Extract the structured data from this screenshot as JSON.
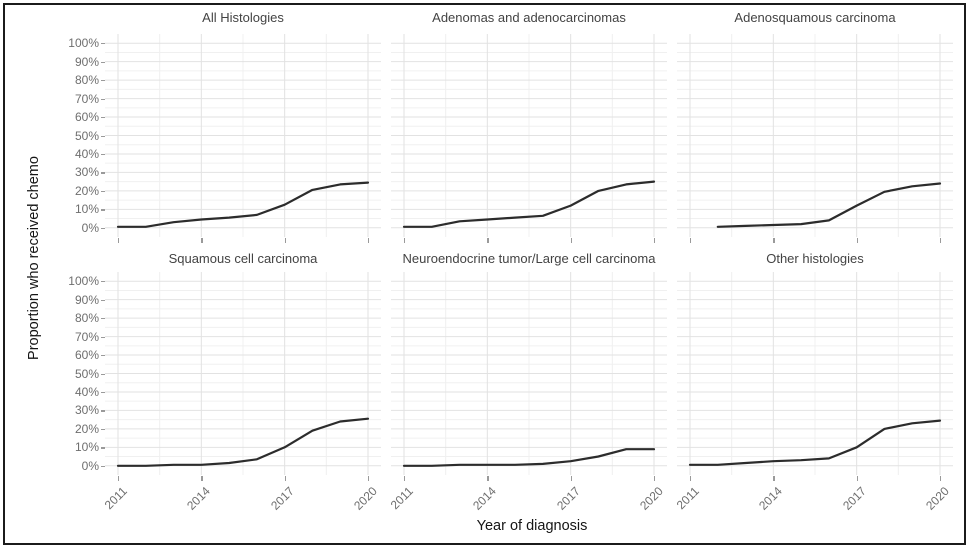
{
  "figure": {
    "background": "#ffffff",
    "border_color": "#1b1b1b"
  },
  "chart_data": {
    "type": "line",
    "layout": {
      "rows": 2,
      "cols": 3,
      "kind": "facet_grid"
    },
    "xlabel": "Year of diagnosis",
    "ylabel": "Proportion who received chemo",
    "x": [
      2011,
      2012,
      2013,
      2014,
      2015,
      2016,
      2017,
      2018,
      2019,
      2020
    ],
    "x_ticks": [
      2011,
      2014,
      2017,
      2020
    ],
    "x_tick_labels": [
      "2011",
      "2014",
      "2017",
      "2020"
    ],
    "y_ticks": [
      0,
      10,
      20,
      30,
      40,
      50,
      60,
      70,
      80,
      90,
      100
    ],
    "y_tick_labels": [
      "0%",
      "10%",
      "20%",
      "30%",
      "40%",
      "50%",
      "60%",
      "70%",
      "80%",
      "90%",
      "100%"
    ],
    "ylim": [
      0,
      100
    ],
    "y_unit": "%",
    "grid": {
      "major": true,
      "minor": true,
      "major_color": "#e2e2e2",
      "minor_color": "#f0f0f0"
    },
    "legend": "none",
    "line_color": "#2c2c2c",
    "facets": [
      {
        "title": "All Histologies",
        "values": [
          0.5,
          0.5,
          3,
          4.5,
          5.5,
          7,
          12.5,
          20.5,
          23.5,
          24.5
        ]
      },
      {
        "title": "Adenomas and adenocarcinomas",
        "values": [
          0.5,
          0.5,
          3.5,
          4.5,
          5.5,
          6.5,
          12,
          20,
          23.5,
          25
        ]
      },
      {
        "title": "Adenosquamous carcinoma",
        "values": [
          null,
          0.5,
          1,
          1.5,
          2,
          4,
          12,
          19.5,
          22.5,
          24
        ]
      },
      {
        "title": "Squamous cell carcinoma",
        "values": [
          0,
          0,
          0.5,
          0.5,
          1.5,
          3.5,
          10,
          19,
          24,
          25.5
        ]
      },
      {
        "title": "Neuroendocrine tumor/Large cell carcinoma",
        "values": [
          0,
          0,
          0.5,
          0.5,
          0.5,
          1,
          2.5,
          5,
          9,
          9
        ]
      },
      {
        "title": "Other histologies",
        "values": [
          0.5,
          0.5,
          1.5,
          2.5,
          3,
          4,
          10,
          20,
          23,
          24.5
        ]
      }
    ]
  }
}
